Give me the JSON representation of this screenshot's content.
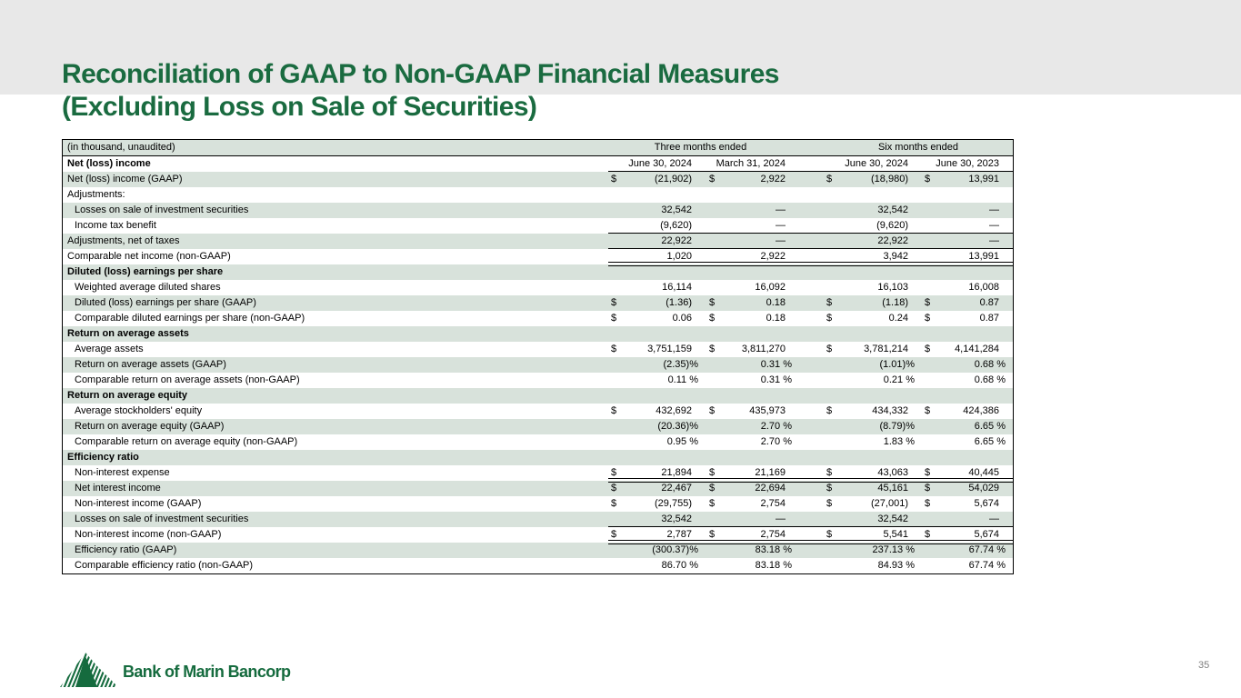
{
  "slide": {
    "title_line1": "Reconciliation of GAAP to Non-GAAP Financial Measures",
    "title_line2": "(Excluding Loss on Sale of Securities)",
    "page_number": "35",
    "logo_text": "Bank of Marin Bancorp",
    "colors": {
      "band_gray": "#e8e8e8",
      "title_green": "#1a6b40",
      "logo_green": "#156b3e",
      "row_green": "#d8e2db",
      "page_gray": "#7f7f7f"
    }
  },
  "table": {
    "note": "(in thousand, unaudited)",
    "label_header": "Net (loss) income",
    "group_headers": [
      "Three months ended",
      "Six months ended"
    ],
    "col_headers": [
      "June 30, 2024",
      "March 31, 2024",
      "June 30, 2024",
      "June 30, 2023"
    ],
    "currency_symbol": "$",
    "rows": [
      {
        "label": "Net (loss) income (GAAP)",
        "indent": false,
        "bold": false,
        "dollars": true,
        "border": null,
        "values": [
          "(21,902)",
          "2,922",
          "(18,980)",
          "13,991"
        ]
      },
      {
        "label": "Adjustments:",
        "indent": false,
        "bold": false,
        "dollars": false,
        "border": null,
        "values": null
      },
      {
        "label": "Losses on sale of investment securities",
        "indent": true,
        "bold": false,
        "dollars": false,
        "border": null,
        "values": [
          "32,542",
          "—",
          "32,542",
          "—"
        ]
      },
      {
        "label": "Income tax benefit",
        "indent": true,
        "bold": false,
        "dollars": false,
        "border": "line",
        "values": [
          "(9,620)",
          "—",
          "(9,620)",
          "—"
        ]
      },
      {
        "label": "Adjustments, net of taxes",
        "indent": false,
        "bold": false,
        "dollars": false,
        "border": "line",
        "values": [
          "22,922",
          "—",
          "22,922",
          "—"
        ]
      },
      {
        "label": "Comparable net income (non-GAAP)",
        "indent": false,
        "bold": false,
        "dollars": false,
        "border": "double",
        "values": [
          "1,020",
          "2,922",
          "3,942",
          "13,991"
        ]
      },
      {
        "label": "Diluted (loss) earnings per share",
        "indent": false,
        "bold": true,
        "dollars": false,
        "border": null,
        "values": null
      },
      {
        "label": "Weighted average diluted shares",
        "indent": true,
        "bold": false,
        "dollars": false,
        "border": null,
        "values": [
          "16,114",
          "16,092",
          "16,103",
          "16,008"
        ]
      },
      {
        "label": "Diluted (loss) earnings per share (GAAP)",
        "indent": true,
        "bold": false,
        "dollars": true,
        "border": null,
        "values": [
          "(1.36)",
          "0.18",
          "(1.18)",
          "0.87"
        ]
      },
      {
        "label": "Comparable diluted earnings per share (non-GAAP)",
        "indent": true,
        "bold": false,
        "dollars": true,
        "border": null,
        "values": [
          "0.06",
          "0.18",
          "0.24",
          "0.87"
        ]
      },
      {
        "label": "Return on average assets",
        "indent": false,
        "bold": true,
        "dollars": false,
        "border": null,
        "values": null
      },
      {
        "label": "Average assets",
        "indent": true,
        "bold": false,
        "dollars": true,
        "border": null,
        "values": [
          "3,751,159",
          "3,811,270",
          "3,781,214",
          "4,141,284"
        ]
      },
      {
        "label": "Return on average assets (GAAP)",
        "indent": true,
        "bold": false,
        "dollars": false,
        "border": null,
        "values": [
          "(2.35)%",
          "0.31 %",
          "(1.01)%",
          "0.68 %"
        ]
      },
      {
        "label": "Comparable return on average assets (non-GAAP)",
        "indent": true,
        "bold": false,
        "dollars": false,
        "border": null,
        "values": [
          "0.11 %",
          "0.31 %",
          "0.21 %",
          "0.68 %"
        ]
      },
      {
        "label": "Return on average equity",
        "indent": false,
        "bold": true,
        "dollars": false,
        "border": null,
        "values": null
      },
      {
        "label": "Average stockholders' equity",
        "indent": true,
        "bold": false,
        "dollars": true,
        "border": null,
        "values": [
          "432,692",
          "435,973",
          "434,332",
          "424,386"
        ]
      },
      {
        "label": "Return on average equity (GAAP)",
        "indent": true,
        "bold": false,
        "dollars": false,
        "border": null,
        "values": [
          "(20.36)%",
          "2.70 %",
          "(8.79)%",
          "6.65 %"
        ]
      },
      {
        "label": "Comparable return on average equity (non-GAAP)",
        "indent": true,
        "bold": false,
        "dollars": false,
        "border": null,
        "values": [
          "0.95 %",
          "2.70 %",
          "1.83 %",
          "6.65 %"
        ]
      },
      {
        "label": "Efficiency ratio",
        "indent": false,
        "bold": true,
        "dollars": false,
        "border": null,
        "values": null
      },
      {
        "label": "Non-interest expense",
        "indent": true,
        "bold": false,
        "dollars": true,
        "border": "double",
        "values": [
          "21,894",
          "21,169",
          "43,063",
          "40,445"
        ]
      },
      {
        "label": "Net interest income",
        "indent": true,
        "bold": false,
        "dollars": true,
        "border": null,
        "values": [
          "22,467",
          "22,694",
          "45,161",
          "54,029"
        ]
      },
      {
        "label": "Non-interest income (GAAP)",
        "indent": true,
        "bold": false,
        "dollars": true,
        "border": null,
        "values": [
          "(29,755)",
          "2,754",
          "(27,001)",
          "5,674"
        ]
      },
      {
        "label": "Losses on sale of investment securities",
        "indent": true,
        "bold": false,
        "dollars": false,
        "border": "line",
        "values": [
          "32,542",
          "—",
          "32,542",
          "—"
        ]
      },
      {
        "label": "Non-interest income (non-GAAP)",
        "indent": true,
        "bold": false,
        "dollars": true,
        "border": "double",
        "values": [
          "2,787",
          "2,754",
          "5,541",
          "5,674"
        ]
      },
      {
        "label": "Efficiency ratio (GAAP)",
        "indent": true,
        "bold": false,
        "dollars": false,
        "border": null,
        "values": [
          "(300.37)%",
          "83.18 %",
          "237.13 %",
          "67.74 %"
        ]
      },
      {
        "label": "Comparable efficiency ratio (non-GAAP)",
        "indent": true,
        "bold": false,
        "dollars": false,
        "border": null,
        "values": [
          "86.70 %",
          "83.18 %",
          "84.93 %",
          "67.74 %"
        ]
      }
    ]
  }
}
